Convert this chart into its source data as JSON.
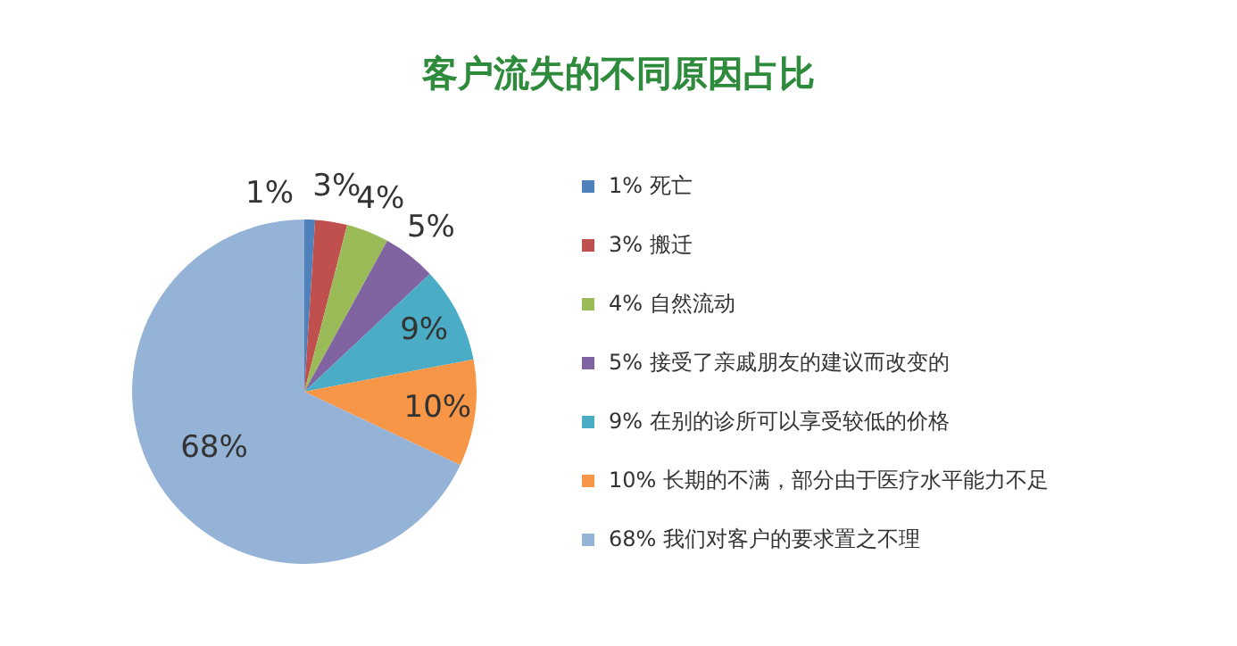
{
  "chart_data": {
    "type": "pie",
    "title": "客户流失的不同原因占比",
    "categories": [
      "1% 死亡",
      "3% 搬迁",
      "4% 自然流动",
      "5% 接受了亲戚朋友的建议而改变的",
      "9% 在别的诊所可以享受较低的价格",
      "10% 长期的不满，部分由于医疗水平能力不足",
      "68% 我们对客户的要求置之不理"
    ],
    "values": [
      1,
      3,
      4,
      5,
      9,
      10,
      68
    ],
    "colors": [
      "#4f81bd",
      "#c0504d",
      "#9bbb59",
      "#8064a2",
      "#4bacc6",
      "#f79646",
      "#95b3d7"
    ],
    "value_labels": [
      "1%",
      "3%",
      "4%",
      "5%",
      "9%",
      "10%",
      "68%"
    ],
    "legend": "right"
  }
}
